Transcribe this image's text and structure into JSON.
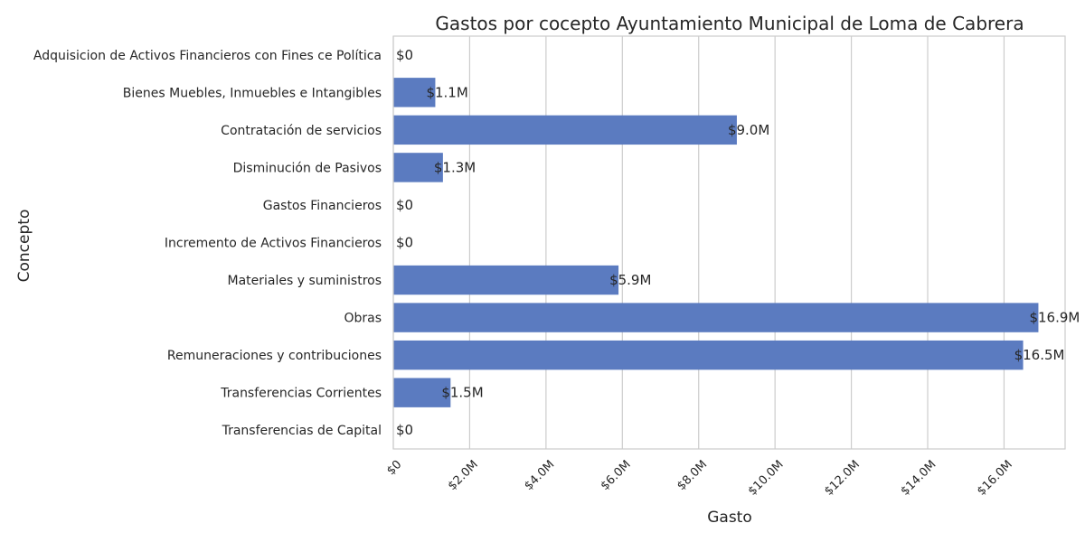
{
  "chart_data": {
    "type": "bar",
    "orientation": "horizontal",
    "title": "Gastos por cocepto Ayuntamiento Municipal de Loma de Cabrera",
    "xlabel": "Gasto",
    "ylabel": "Concepto",
    "categories": [
      "Adquisicion de Activos Financieros con Fines ce Política",
      "Bienes Muebles, Inmuebles e Intangibles",
      "Contratación de servicios",
      "Disminución de Pasivos",
      "Gastos Financieros",
      "Incremento de Activos Financieros",
      "Materiales y suministros",
      "Obras",
      "Remuneraciones y contribuciones",
      "Transferencias Corrientes",
      "Transferencias de Capital"
    ],
    "values": [
      0,
      1100000,
      9000000,
      1300000,
      0,
      0,
      5900000,
      16900000,
      16500000,
      1500000,
      0
    ],
    "value_labels": [
      "$0",
      "$1.1M",
      "$9.0M",
      "$1.3M",
      "$0",
      "$0",
      "$5.9M",
      "$16.9M",
      "$16.5M",
      "$1.5M",
      "$0"
    ],
    "xlim": [
      0,
      17600000
    ],
    "xticks": [
      0,
      2000000,
      4000000,
      6000000,
      8000000,
      10000000,
      12000000,
      14000000,
      16000000
    ],
    "xtick_labels": [
      "$0",
      "$2.0M",
      "$4.0M",
      "$6.0M",
      "$8.0M",
      "$10.0M",
      "$12.0M",
      "$14.0M",
      "$16.0M"
    ],
    "grid": "vertical",
    "bar_color": "#5b7bc0",
    "grid_color": "#cccccc"
  }
}
